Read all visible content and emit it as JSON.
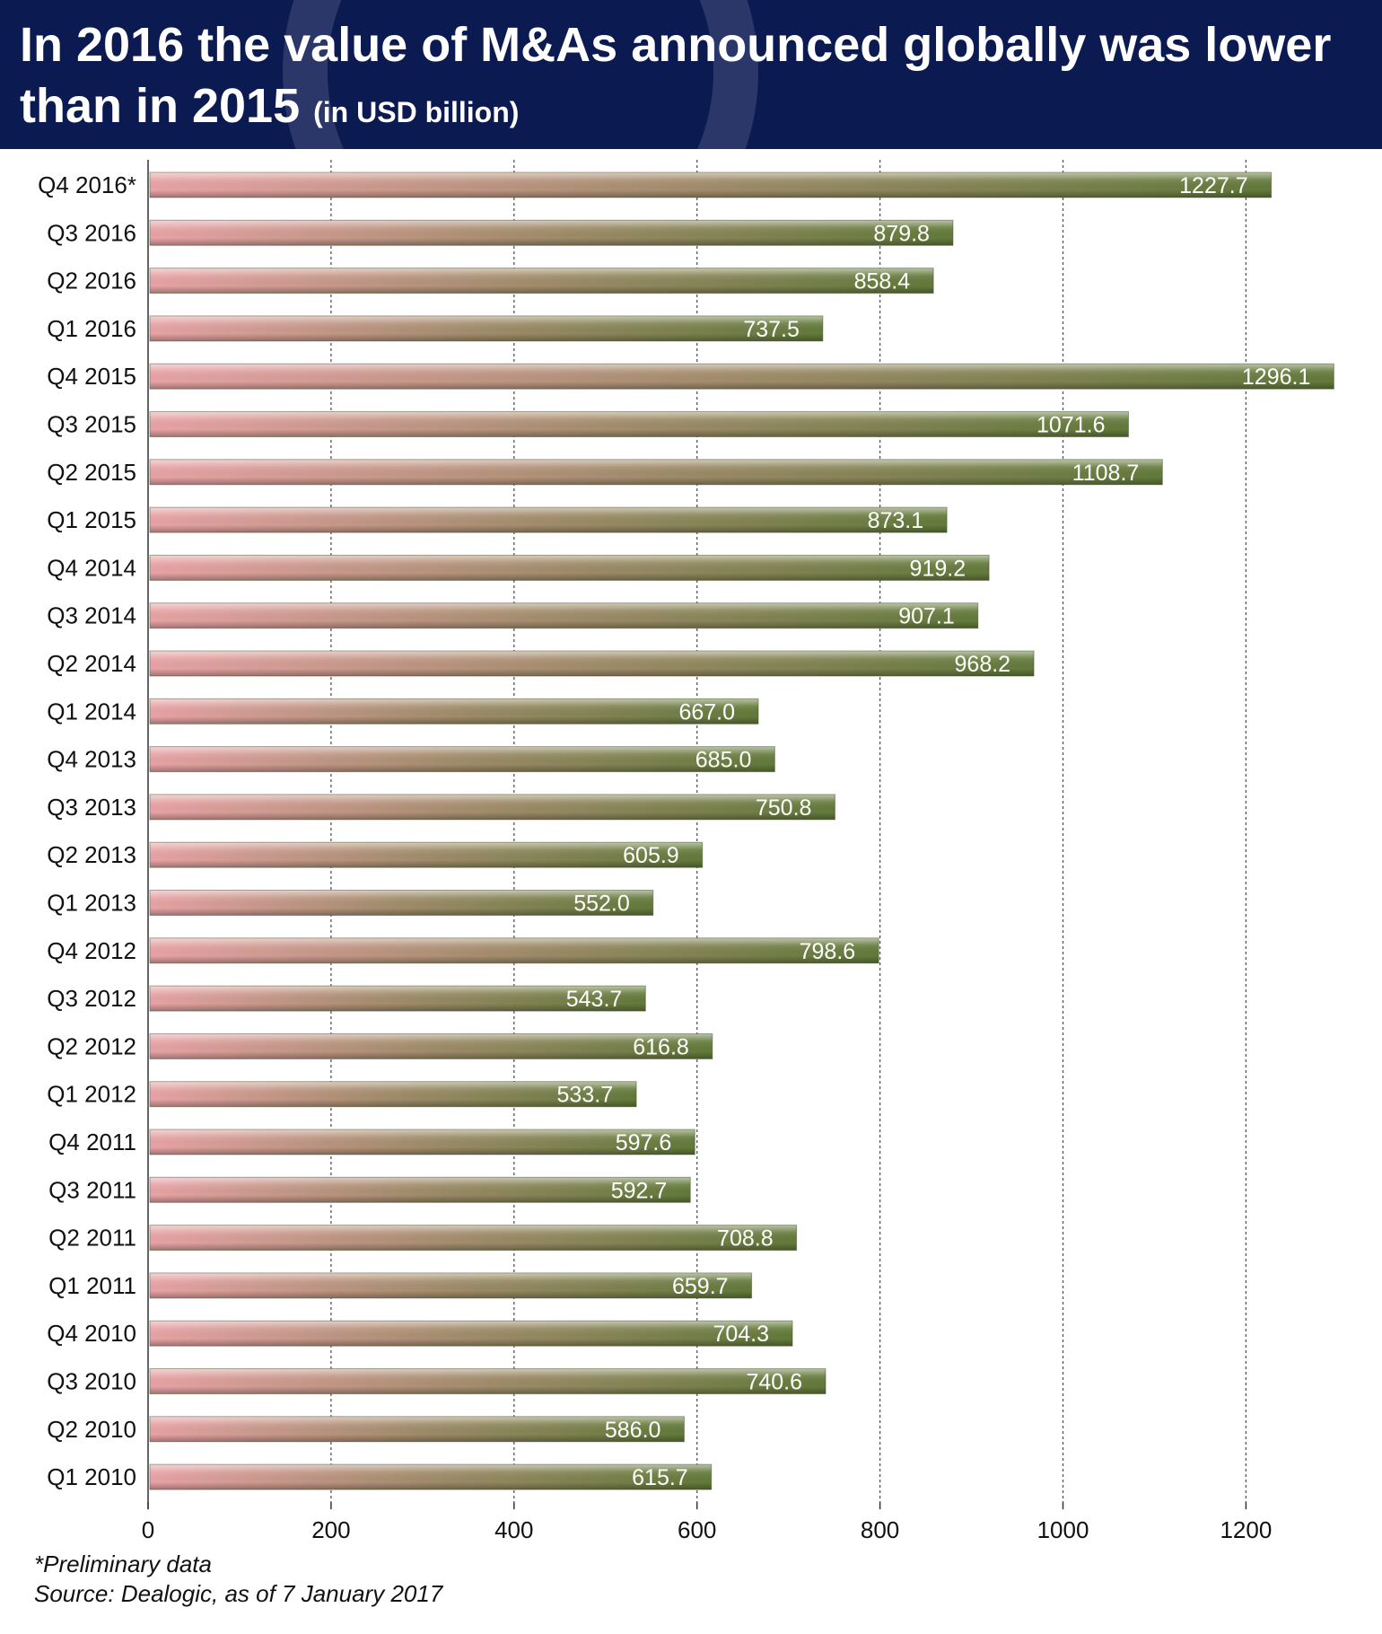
{
  "header": {
    "title_main": "In 2016 the value of M&As announced globally was lower than in 2015",
    "title_unit": "(in USD billion)"
  },
  "footnote": {
    "note": "*Preliminary data",
    "source": "Source: Dealogic, as of 7 January 2017"
  },
  "colors": {
    "header_bg": "#0c1a52",
    "bar_start": "#e9a3a6",
    "bar_end": "#627a3a"
  },
  "chart_data": {
    "type": "bar",
    "orientation": "horizontal",
    "categories": [
      "Q4 2016*",
      "Q3 2016",
      "Q2 2016",
      "Q1 2016",
      "Q4 2015",
      "Q3 2015",
      "Q2 2015",
      "Q1 2015",
      "Q4 2014",
      "Q3 2014",
      "Q2 2014",
      "Q1 2014",
      "Q4 2013",
      "Q3 2013",
      "Q2 2013",
      "Q1 2013",
      "Q4 2012",
      "Q3 2012",
      "Q2 2012",
      "Q1 2012",
      "Q4 2011",
      "Q3 2011",
      "Q2 2011",
      "Q1 2011",
      "Q4 2010",
      "Q3 2010",
      "Q2 2010",
      "Q1 2010"
    ],
    "values": [
      1227.7,
      879.8,
      858.4,
      737.5,
      1296.1,
      1071.6,
      1108.7,
      873.1,
      919.2,
      907.1,
      968.2,
      667.0,
      685.0,
      750.8,
      605.9,
      552.0,
      798.6,
      543.7,
      616.8,
      533.7,
      597.6,
      592.7,
      708.8,
      659.7,
      704.3,
      740.6,
      586.0,
      615.7
    ],
    "value_labels": [
      "1227.7",
      "879.8",
      "858.4",
      "737.5",
      "1296.1",
      "1071.6",
      "1108.7",
      "873.1",
      "919.2",
      "907.1",
      "968.2",
      "667.0",
      "685.0",
      "750.8",
      "605.9",
      "552.0",
      "798.6",
      "543.7",
      "616.8",
      "533.7",
      "597.6",
      "592.7",
      "708.8",
      "659.7",
      "704.3",
      "740.6",
      "586.0",
      "615.7"
    ],
    "xlim": [
      0,
      1300
    ],
    "xticks": [
      0,
      200,
      400,
      600,
      800,
      1000,
      1200
    ],
    "xtick_labels": [
      "0",
      "200",
      "400",
      "600",
      "800",
      "1000",
      "1200"
    ],
    "grid": "vertical dotted"
  }
}
